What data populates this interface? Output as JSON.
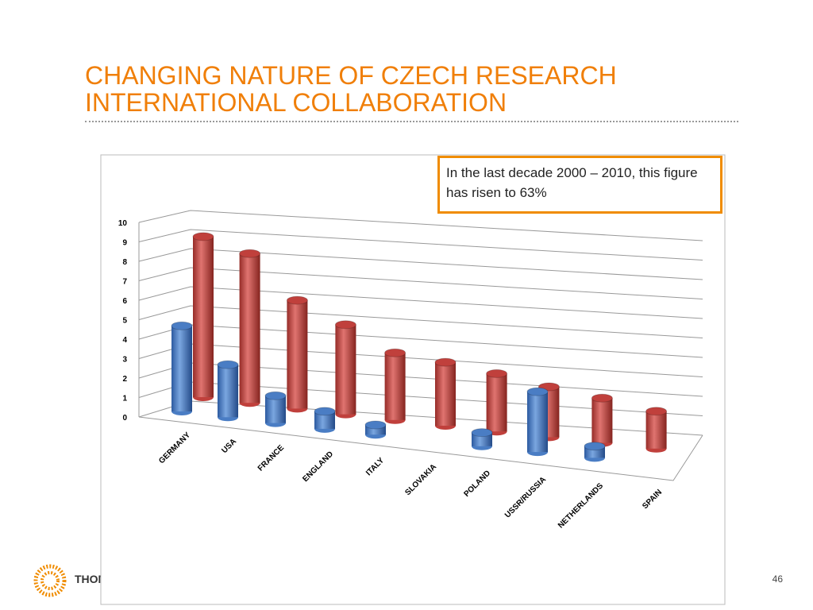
{
  "header": {
    "title": "CHANGING NATURE OF CZECH RESEARCH INTERNATIONAL COLLABORATION"
  },
  "note": "In the last decade 2000 – 2010, this figure has risen to 63%",
  "footer": {
    "brand": "THOM",
    "page": "46"
  },
  "chart_data": {
    "type": "bar3d",
    "categories": [
      "GERMANY",
      "USA",
      "FRANCE",
      "ENGLAND",
      "ITALY",
      "SLOVAKIA",
      "POLAND",
      "USSR/RUSSIA",
      "NETHERLANDS",
      "SPAIN"
    ],
    "series": [
      {
        "color": "#4a7dc4",
        "values": [
          4.4,
          2.7,
          1.4,
          0.9,
          0.5,
          null,
          0.7,
          3.1,
          0.6,
          null
        ]
      },
      {
        "color": "#c0403c",
        "values": [
          8.6,
          8.0,
          5.8,
          4.8,
          3.6,
          3.4,
          3.1,
          2.7,
          2.4,
          2.0
        ]
      }
    ],
    "ylim": [
      0,
      10
    ],
    "yticks": [
      0,
      1,
      2,
      3,
      4,
      5,
      6,
      7,
      8,
      9,
      10
    ],
    "grid": true
  }
}
